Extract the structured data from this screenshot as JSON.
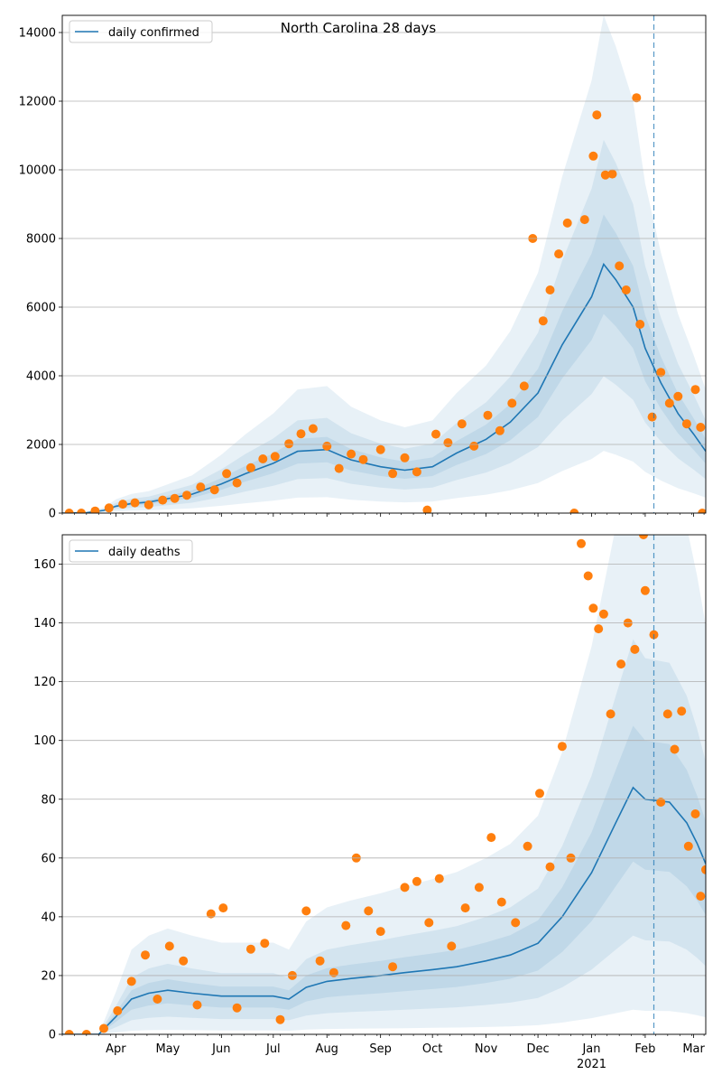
{
  "chart_data": [
    {
      "type": "line",
      "title": "North Carolina 28 days",
      "xlabel": "",
      "ylabel": "",
      "ylim": [
        0,
        14500
      ],
      "grid": "horizontal",
      "legend_position": "top-left",
      "x_range": [
        "2020-03-01",
        "2021-03-08"
      ],
      "x_ticks": [
        {
          "date": "2020-04-01",
          "label": "Apr"
        },
        {
          "date": "2020-05-01",
          "label": "May"
        },
        {
          "date": "2020-06-01",
          "label": "Jun"
        },
        {
          "date": "2020-07-01",
          "label": "Jul"
        },
        {
          "date": "2020-08-01",
          "label": "Aug"
        },
        {
          "date": "2020-09-01",
          "label": "Sep"
        },
        {
          "date": "2020-10-01",
          "label": "Oct"
        },
        {
          "date": "2020-11-01",
          "label": "Nov"
        },
        {
          "date": "2020-12-01",
          "label": "Dec"
        },
        {
          "date": "2021-01-01",
          "label": "Jan",
          "sublabel": "2021"
        },
        {
          "date": "2021-02-01",
          "label": "Feb"
        },
        {
          "date": "2021-03-01",
          "label": "Mar"
        }
      ],
      "y_ticks": [
        0,
        2000,
        4000,
        6000,
        8000,
        10000,
        12000,
        14000
      ],
      "vline_date": "2021-02-06",
      "series": [
        {
          "name": "daily confirmed",
          "kind": "line",
          "color": "#1f77b4",
          "points": [
            [
              "2020-03-01",
              0
            ],
            [
              "2020-03-15",
              10
            ],
            [
              "2020-03-25",
              80
            ],
            [
              "2020-04-01",
              200
            ],
            [
              "2020-04-10",
              280
            ],
            [
              "2020-04-20",
              320
            ],
            [
              "2020-05-01",
              420
            ],
            [
              "2020-05-15",
              550
            ],
            [
              "2020-06-01",
              850
            ],
            [
              "2020-06-15",
              1150
            ],
            [
              "2020-07-01",
              1450
            ],
            [
              "2020-07-15",
              1800
            ],
            [
              "2020-08-01",
              1850
            ],
            [
              "2020-08-15",
              1550
            ],
            [
              "2020-09-01",
              1350
            ],
            [
              "2020-09-15",
              1250
            ],
            [
              "2020-10-01",
              1350
            ],
            [
              "2020-10-15",
              1750
            ],
            [
              "2020-11-01",
              2150
            ],
            [
              "2020-11-15",
              2650
            ],
            [
              "2020-12-01",
              3500
            ],
            [
              "2020-12-15",
              4900
            ],
            [
              "2021-01-01",
              6300
            ],
            [
              "2021-01-08",
              7250
            ],
            [
              "2021-01-15",
              6800
            ],
            [
              "2021-01-25",
              6000
            ],
            [
              "2021-02-01",
              4800
            ],
            [
              "2021-02-10",
              3800
            ],
            [
              "2021-02-20",
              2900
            ],
            [
              "2021-03-01",
              2300
            ],
            [
              "2021-03-08",
              1800
            ]
          ]
        },
        {
          "name": "",
          "kind": "scatter",
          "color": "#ff7f0e",
          "points": [
            [
              "2020-03-05",
              0
            ],
            [
              "2020-03-12",
              0
            ],
            [
              "2020-03-20",
              60
            ],
            [
              "2020-03-28",
              150
            ],
            [
              "2020-04-05",
              260
            ],
            [
              "2020-04-12",
              300
            ],
            [
              "2020-04-20",
              240
            ],
            [
              "2020-04-28",
              380
            ],
            [
              "2020-05-05",
              430
            ],
            [
              "2020-05-12",
              520
            ],
            [
              "2020-05-20",
              760
            ],
            [
              "2020-05-28",
              680
            ],
            [
              "2020-06-04",
              1150
            ],
            [
              "2020-06-10",
              880
            ],
            [
              "2020-06-18",
              1320
            ],
            [
              "2020-06-25",
              1580
            ],
            [
              "2020-07-02",
              1650
            ],
            [
              "2020-07-10",
              2020
            ],
            [
              "2020-07-17",
              2310
            ],
            [
              "2020-07-24",
              2460
            ],
            [
              "2020-08-01",
              1950
            ],
            [
              "2020-08-08",
              1300
            ],
            [
              "2020-08-15",
              1720
            ],
            [
              "2020-08-22",
              1560
            ],
            [
              "2020-09-01",
              1850
            ],
            [
              "2020-09-08",
              1150
            ],
            [
              "2020-09-15",
              1610
            ],
            [
              "2020-09-22",
              1200
            ],
            [
              "2020-09-28",
              90
            ],
            [
              "2020-10-03",
              2300
            ],
            [
              "2020-10-10",
              2050
            ],
            [
              "2020-10-18",
              2600
            ],
            [
              "2020-10-25",
              1950
            ],
            [
              "2020-11-02",
              2850
            ],
            [
              "2020-11-09",
              2400
            ],
            [
              "2020-11-16",
              3200
            ],
            [
              "2020-11-23",
              3700
            ],
            [
              "2020-11-28",
              8000
            ],
            [
              "2020-12-04",
              5600
            ],
            [
              "2020-12-08",
              6500
            ],
            [
              "2020-12-13",
              7550
            ],
            [
              "2020-12-18",
              8450
            ],
            [
              "2020-12-22",
              0
            ],
            [
              "2020-12-28",
              8550
            ],
            [
              "2021-01-02",
              10400
            ],
            [
              "2021-01-04",
              11600
            ],
            [
              "2021-01-09",
              9850
            ],
            [
              "2021-01-13",
              9880
            ],
            [
              "2021-01-17",
              7200
            ],
            [
              "2021-01-21",
              6500
            ],
            [
              "2021-01-27",
              12100
            ],
            [
              "2021-01-29",
              5500
            ],
            [
              "2021-02-05",
              2800
            ],
            [
              "2021-02-10",
              4100
            ],
            [
              "2021-02-15",
              3200
            ],
            [
              "2021-02-20",
              3400
            ],
            [
              "2021-02-25",
              2600
            ],
            [
              "2021-03-02",
              3600
            ],
            [
              "2021-03-05",
              2500
            ],
            [
              "2021-03-06",
              0
            ]
          ]
        }
      ]
    },
    {
      "type": "line",
      "title": "",
      "xlabel": "",
      "ylabel": "",
      "ylim": [
        0,
        170
      ],
      "grid": "horizontal",
      "legend_position": "top-left",
      "x_range": [
        "2020-03-01",
        "2021-03-08"
      ],
      "y_ticks": [
        0,
        20,
        40,
        60,
        80,
        100,
        120,
        140,
        160
      ],
      "vline_date": "2021-02-06",
      "series": [
        {
          "name": "daily deaths",
          "kind": "line",
          "color": "#1f77b4",
          "points": [
            [
              "2020-03-01",
              0
            ],
            [
              "2020-03-22",
              0
            ],
            [
              "2020-04-01",
              6
            ],
            [
              "2020-04-10",
              12
            ],
            [
              "2020-04-20",
              14
            ],
            [
              "2020-05-01",
              15
            ],
            [
              "2020-05-15",
              14
            ],
            [
              "2020-06-01",
              13
            ],
            [
              "2020-06-15",
              13
            ],
            [
              "2020-07-01",
              13
            ],
            [
              "2020-07-10",
              12
            ],
            [
              "2020-07-20",
              16
            ],
            [
              "2020-08-01",
              18
            ],
            [
              "2020-08-15",
              19
            ],
            [
              "2020-09-01",
              20
            ],
            [
              "2020-09-15",
              21
            ],
            [
              "2020-10-01",
              22
            ],
            [
              "2020-10-15",
              23
            ],
            [
              "2020-11-01",
              25
            ],
            [
              "2020-11-15",
              27
            ],
            [
              "2020-12-01",
              31
            ],
            [
              "2020-12-15",
              40
            ],
            [
              "2021-01-01",
              55
            ],
            [
              "2021-01-15",
              72
            ],
            [
              "2021-01-25",
              84
            ],
            [
              "2021-02-01",
              80
            ],
            [
              "2021-02-15",
              79
            ],
            [
              "2021-02-25",
              72
            ],
            [
              "2021-03-03",
              65
            ],
            [
              "2021-03-08",
              58
            ]
          ]
        },
        {
          "name": "",
          "kind": "scatter",
          "color": "#ff7f0e",
          "points": [
            [
              "2020-03-05",
              0
            ],
            [
              "2020-03-15",
              0
            ],
            [
              "2020-03-25",
              2
            ],
            [
              "2020-04-02",
              8
            ],
            [
              "2020-04-10",
              18
            ],
            [
              "2020-04-18",
              27
            ],
            [
              "2020-04-25",
              12
            ],
            [
              "2020-05-02",
              30
            ],
            [
              "2020-05-10",
              25
            ],
            [
              "2020-05-18",
              10
            ],
            [
              "2020-05-26",
              41
            ],
            [
              "2020-06-02",
              43
            ],
            [
              "2020-06-10",
              9
            ],
            [
              "2020-06-18",
              29
            ],
            [
              "2020-06-26",
              31
            ],
            [
              "2020-07-05",
              5
            ],
            [
              "2020-07-12",
              20
            ],
            [
              "2020-07-20",
              42
            ],
            [
              "2020-07-28",
              25
            ],
            [
              "2020-08-05",
              21
            ],
            [
              "2020-08-12",
              37
            ],
            [
              "2020-08-18",
              60
            ],
            [
              "2020-08-25",
              42
            ],
            [
              "2020-09-01",
              35
            ],
            [
              "2020-09-08",
              23
            ],
            [
              "2020-09-15",
              50
            ],
            [
              "2020-09-22",
              52
            ],
            [
              "2020-09-29",
              38
            ],
            [
              "2020-10-05",
              53
            ],
            [
              "2020-10-12",
              30
            ],
            [
              "2020-10-20",
              43
            ],
            [
              "2020-10-28",
              50
            ],
            [
              "2020-11-04",
              67
            ],
            [
              "2020-11-10",
              45
            ],
            [
              "2020-11-18",
              38
            ],
            [
              "2020-11-25",
              64
            ],
            [
              "2020-12-02",
              82
            ],
            [
              "2020-12-08",
              57
            ],
            [
              "2020-12-15",
              98
            ],
            [
              "2020-12-20",
              60
            ],
            [
              "2020-12-26",
              167
            ],
            [
              "2020-12-30",
              156
            ],
            [
              "2021-01-02",
              145
            ],
            [
              "2021-01-05",
              138
            ],
            [
              "2021-01-08",
              143
            ],
            [
              "2021-01-12",
              109
            ],
            [
              "2021-01-18",
              126
            ],
            [
              "2021-01-22",
              140
            ],
            [
              "2021-01-26",
              131
            ],
            [
              "2021-01-31",
              170
            ],
            [
              "2021-02-01",
              151
            ],
            [
              "2021-02-06",
              136
            ],
            [
              "2021-02-10",
              79
            ],
            [
              "2021-02-14",
              109
            ],
            [
              "2021-02-18",
              97
            ],
            [
              "2021-02-22",
              110
            ],
            [
              "2021-02-26",
              64
            ],
            [
              "2021-03-02",
              75
            ],
            [
              "2021-03-05",
              47
            ],
            [
              "2021-03-08",
              56
            ]
          ]
        }
      ]
    }
  ]
}
